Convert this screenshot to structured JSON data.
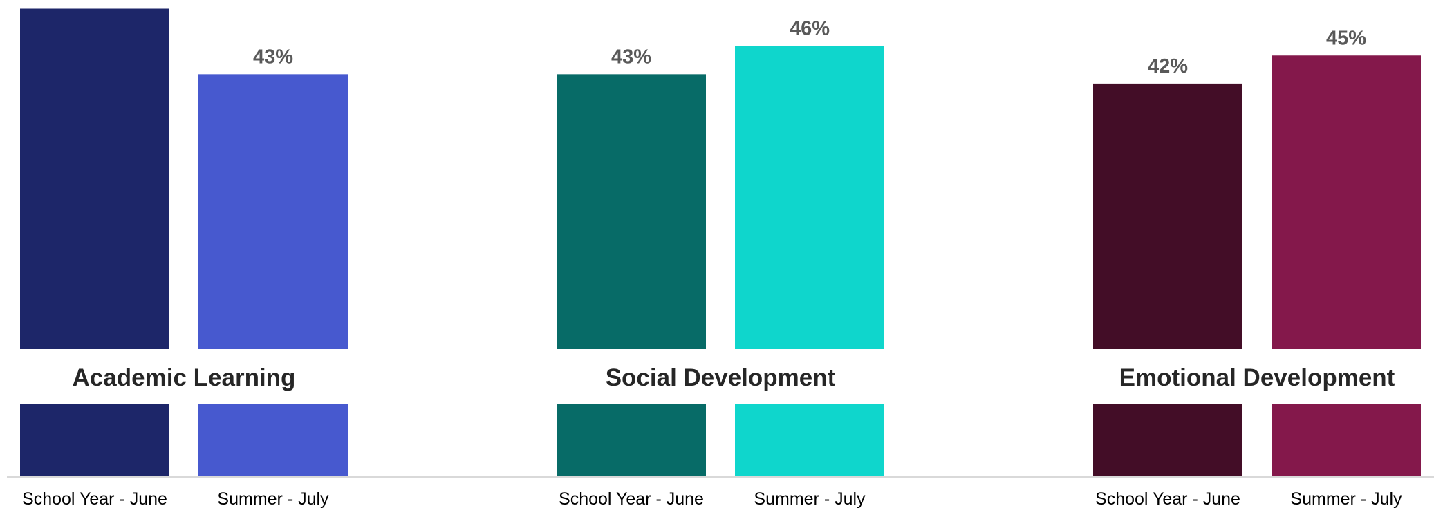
{
  "chart_data": {
    "type": "bar",
    "value_suffix": "%",
    "ylim": [
      0,
      50
    ],
    "grid": false,
    "legend": "none",
    "groups": [
      {
        "title": "Academic Learning",
        "bars": [
          {
            "category": "School Year - June",
            "value": 50,
            "color": "#1d2669"
          },
          {
            "category": "Summer - July",
            "value": 43,
            "color": "#4759cf"
          }
        ]
      },
      {
        "title": "Social Development",
        "bars": [
          {
            "category": "School Year - June",
            "value": 43,
            "color": "#076b67"
          },
          {
            "category": "Summer - July",
            "value": 46,
            "color": "#0fd6cc"
          }
        ]
      },
      {
        "title": "Emotional Development",
        "bars": [
          {
            "category": "School Year - June",
            "value": 42,
            "color": "#430d27"
          },
          {
            "category": "Summer - July",
            "value": 45,
            "color": "#84184b"
          }
        ]
      }
    ]
  }
}
